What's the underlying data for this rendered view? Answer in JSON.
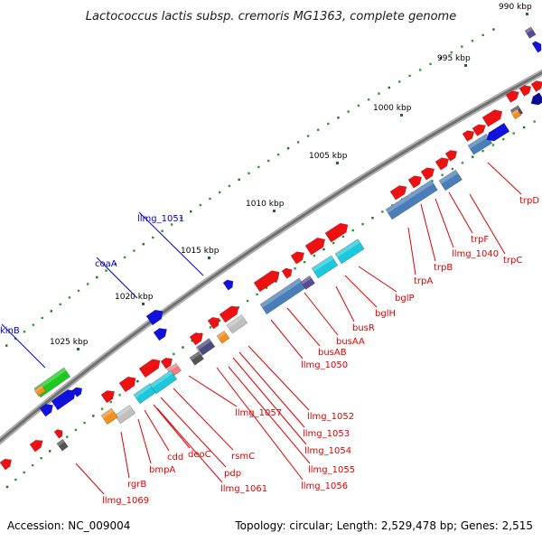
{
  "title": "Lactococcus lactis subsp. cremoris MG1363, complete genome",
  "footer": {
    "accession": "Accession: NC_009004",
    "summary": "Topology: circular; Length: 2,529,478 bp; Genes: 2,515"
  },
  "scale_labels": [
    "990 kbp",
    "995 kbp",
    "1000 kbp",
    "1005 kbp",
    "1010 kbp",
    "1015 kbp",
    "1020 kbp",
    "1025 kbp"
  ],
  "gene_labels_red": [
    "trpD",
    "trpC",
    "trpF",
    "llmg_1040",
    "trpB",
    "trpA",
    "bglP",
    "bglH",
    "busR",
    "busAA",
    "busAB",
    "llmg_1050",
    "llmg_1052",
    "llmg_1053",
    "llmg_1054",
    "llmg_1055",
    "llmg_1056",
    "llmg_1057",
    "rsmC",
    "pdp",
    "llmg_1061",
    "deoC",
    "cdd",
    "bmpA",
    "rgrB",
    "llmg_1069"
  ],
  "gene_labels_blue": [
    "llmg_1051",
    "coaA",
    "kinB"
  ],
  "colors": {
    "backbone": "#8c8c8c",
    "feature_red": "#ee1111",
    "feature_blue": "#1111dd",
    "steelblue": "#4a7eb8",
    "cyan": "#1ec8dc",
    "label_red": "#e00000",
    "label_blue": "#0000cc"
  }
}
